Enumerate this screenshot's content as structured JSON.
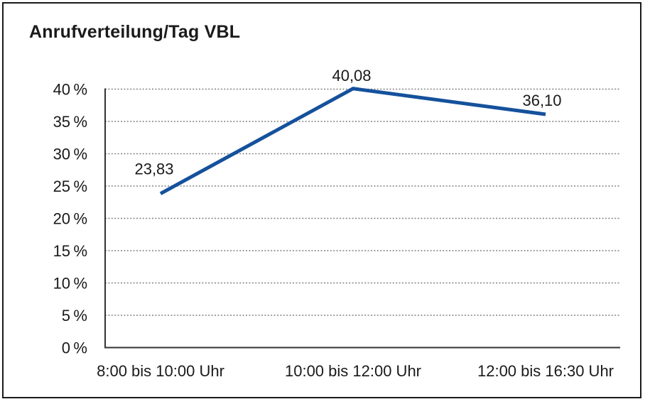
{
  "window": {
    "background": "#FFFFFF",
    "border_color": "#1A1A1A"
  },
  "chart_data": {
    "type": "line",
    "title": "Anrufverteilung/Tag VBL",
    "categories": [
      "8:00 bis 10:00 Uhr",
      "10:00 bis 12:00 Uhr",
      "12:00 bis 16:30 Uhr"
    ],
    "series": [
      {
        "values": [
          23.83,
          40.08,
          36.1
        ],
        "point_labels": [
          "23,83",
          "40,08",
          "36,10"
        ],
        "color": "#15519C",
        "line_width": 5
      }
    ],
    "xlabel": "",
    "ylabel": "",
    "ylim": [
      0,
      40
    ],
    "y_ticks": [
      {
        "value": 0,
        "label": "0 %"
      },
      {
        "value": 5,
        "label": "5 %"
      },
      {
        "value": 10,
        "label": "10 %"
      },
      {
        "value": 15,
        "label": "15 %"
      },
      {
        "value": 20,
        "label": "20 %"
      },
      {
        "value": 25,
        "label": "25 %"
      },
      {
        "value": 30,
        "label": "30 %"
      },
      {
        "value": 35,
        "label": "35 %"
      },
      {
        "value": 40,
        "label": "40 %"
      }
    ],
    "grid": {
      "horizontal": true,
      "style": "dotted",
      "color": "#808080"
    },
    "axis_color": "#333333",
    "text_color": "#1A1A1A",
    "legend": "none"
  }
}
